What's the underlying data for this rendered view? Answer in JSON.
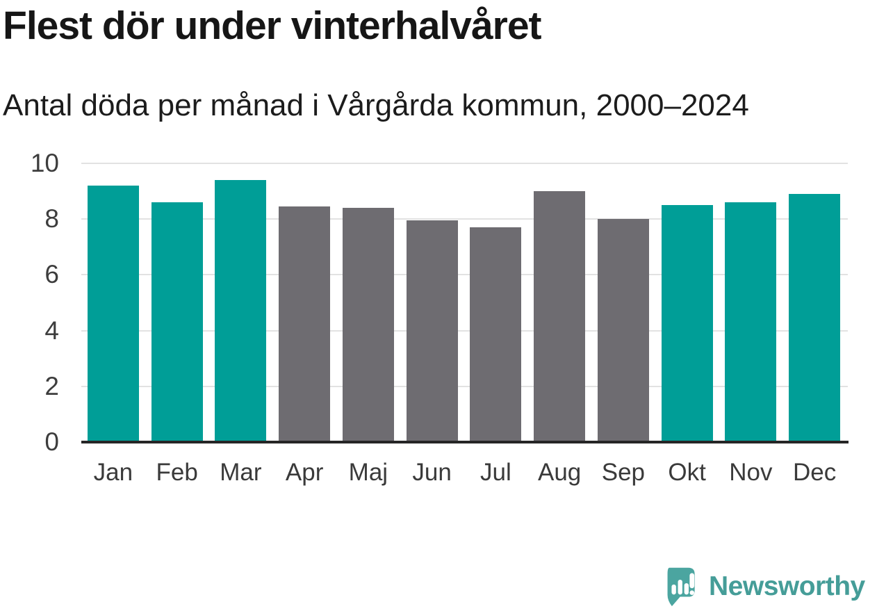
{
  "header": {
    "title": "Flest dör under vinterhalvåret",
    "subtitle": "Antal döda per månad i Vårgårda kommun, 2000–2024"
  },
  "chart_data": {
    "type": "bar",
    "title": "Flest dör under vinterhalvåret",
    "subtitle": "Antal döda per månad i Vårgårda kommun, 2000–2024",
    "categories": [
      "Jan",
      "Feb",
      "Mar",
      "Apr",
      "Maj",
      "Jun",
      "Jul",
      "Aug",
      "Sep",
      "Okt",
      "Nov",
      "Dec"
    ],
    "values": [
      9.2,
      8.6,
      9.4,
      8.45,
      8.4,
      7.95,
      7.7,
      9.0,
      8.0,
      8.5,
      8.6,
      8.9
    ],
    "seasons": [
      "winter",
      "winter",
      "winter",
      "summer",
      "summer",
      "summer",
      "summer",
      "summer",
      "summer",
      "winter",
      "winter",
      "winter"
    ],
    "colors": {
      "winter": "#009e97",
      "summer": "#6e6c71"
    },
    "xlabel": "",
    "ylabel": "",
    "ylim": [
      0,
      10
    ],
    "yticks": [
      0,
      2,
      4,
      6,
      8,
      10
    ],
    "grid": true,
    "legend": "none"
  },
  "footer": {
    "brand": "Newsworthy"
  }
}
